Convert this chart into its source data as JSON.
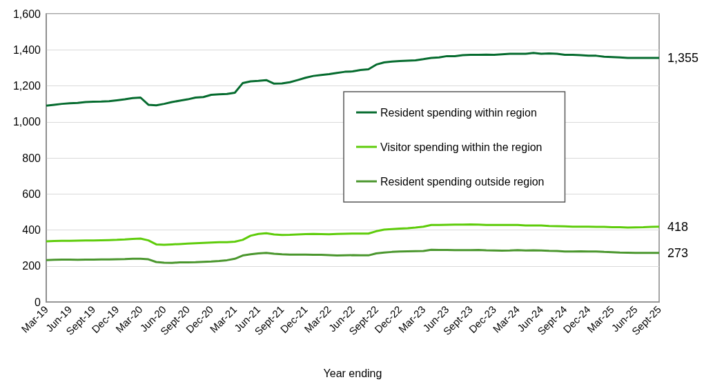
{
  "chart_data": {
    "type": "line",
    "xlabel": "Year ending",
    "categories": [
      "Mar-19",
      null,
      null,
      "Jun-19",
      null,
      null,
      "Sept-19",
      null,
      null,
      "Dec-19",
      null,
      null,
      "Mar-20",
      null,
      null,
      "Jun-20",
      null,
      null,
      "Sept-20",
      null,
      null,
      "Dec-20",
      null,
      null,
      "Mar-21",
      null,
      null,
      "Jun-21",
      null,
      null,
      "Sept-21",
      null,
      null,
      "Dec-21",
      null,
      null,
      "Mar-22",
      null,
      null,
      "Jun-22",
      null,
      null,
      "Sept-22",
      null,
      null,
      "Dec-22",
      null,
      null,
      "Mar-23",
      null,
      null,
      "Jun-23",
      null,
      null,
      "Sept-23",
      null,
      null,
      "Dec-23",
      null,
      null,
      "Mar-24",
      null,
      null,
      "Jun-24",
      null,
      null,
      "Sept-24",
      null,
      null,
      "Dec-24",
      null,
      null,
      "Mar-25",
      null,
      null,
      "Jun-25",
      null,
      null,
      "Sept-25"
    ],
    "series": [
      {
        "name": "Resident spending within region",
        "color": "#056b2e",
        "values": [
          1090,
          1095,
          1100,
          1103,
          1105,
          1110,
          1112,
          1113,
          1115,
          1120,
          1125,
          1132,
          1135,
          1095,
          1092,
          1100,
          1110,
          1118,
          1125,
          1135,
          1138,
          1150,
          1153,
          1155,
          1162,
          1215,
          1225,
          1228,
          1232,
          1212,
          1213,
          1220,
          1232,
          1245,
          1255,
          1260,
          1265,
          1272,
          1278,
          1280,
          1288,
          1292,
          1318,
          1330,
          1335,
          1338,
          1340,
          1342,
          1348,
          1355,
          1358,
          1365,
          1365,
          1370,
          1372,
          1372,
          1373,
          1372,
          1375,
          1378,
          1378,
          1378,
          1383,
          1378,
          1380,
          1378,
          1372,
          1372,
          1370,
          1367,
          1367,
          1362,
          1360,
          1358,
          1355,
          1355,
          1355,
          1355,
          1355
        ],
        "value_labels": [
          null,
          null,
          null,
          null,
          null,
          null,
          null,
          null,
          null,
          null,
          null,
          null,
          null,
          null,
          null,
          null,
          null,
          null,
          null,
          null,
          null,
          null,
          null,
          null,
          null,
          null,
          null,
          null,
          null,
          null,
          null,
          null,
          null,
          null,
          null,
          null,
          null,
          null,
          null,
          null,
          null,
          null,
          null,
          null,
          null,
          null,
          null,
          null,
          null,
          null,
          null,
          null,
          null,
          null,
          null,
          null,
          null,
          null,
          null,
          null,
          null,
          null,
          null,
          null,
          null,
          null,
          null,
          null,
          null,
          null,
          null,
          null,
          null,
          null,
          null,
          null,
          null,
          null,
          "1,355"
        ]
      },
      {
        "name": "Visitor spending within the region",
        "color": "#5ecc0a",
        "values": [
          337,
          339,
          340,
          340,
          341,
          342,
          342,
          343,
          344,
          345,
          347,
          350,
          352,
          342,
          320,
          318,
          320,
          322,
          324,
          326,
          328,
          330,
          332,
          332,
          335,
          345,
          368,
          378,
          382,
          375,
          372,
          373,
          375,
          377,
          378,
          377,
          376,
          378,
          379,
          380,
          380,
          380,
          393,
          402,
          405,
          408,
          410,
          413,
          418,
          428,
          428,
          429,
          430,
          430,
          431,
          430,
          428,
          428,
          428,
          428,
          428,
          425,
          425,
          425,
          422,
          421,
          420,
          418,
          418,
          418,
          417,
          417,
          415,
          415,
          413,
          414,
          415,
          417,
          418
        ],
        "value_labels": [
          null,
          null,
          null,
          null,
          null,
          null,
          null,
          null,
          null,
          null,
          null,
          null,
          null,
          null,
          null,
          null,
          null,
          null,
          null,
          null,
          null,
          null,
          null,
          null,
          null,
          null,
          null,
          null,
          null,
          null,
          null,
          null,
          null,
          null,
          null,
          null,
          null,
          null,
          null,
          null,
          null,
          null,
          null,
          null,
          null,
          null,
          null,
          null,
          null,
          null,
          null,
          null,
          null,
          null,
          null,
          null,
          null,
          null,
          null,
          null,
          null,
          null,
          null,
          null,
          null,
          null,
          null,
          null,
          null,
          null,
          null,
          null,
          null,
          null,
          null,
          null,
          null,
          null,
          "418"
        ]
      },
      {
        "name": "Resident spending outside region",
        "color": "#4a962d",
        "values": [
          233,
          234,
          235,
          235,
          234,
          235,
          235,
          236,
          236,
          237,
          238,
          240,
          240,
          237,
          222,
          218,
          217,
          220,
          220,
          221,
          223,
          225,
          228,
          232,
          240,
          258,
          265,
          270,
          273,
          268,
          265,
          263,
          263,
          263,
          262,
          262,
          260,
          258,
          259,
          260,
          259,
          259,
          270,
          275,
          278,
          280,
          281,
          282,
          283,
          290,
          289,
          289,
          288,
          288,
          288,
          289,
          287,
          286,
          285,
          286,
          288,
          286,
          287,
          286,
          284,
          283,
          280,
          280,
          281,
          280,
          280,
          278,
          277,
          275,
          274,
          273,
          273,
          273,
          273
        ],
        "value_labels": [
          null,
          null,
          null,
          null,
          null,
          null,
          null,
          null,
          null,
          null,
          null,
          null,
          null,
          null,
          null,
          null,
          null,
          null,
          null,
          null,
          null,
          null,
          null,
          null,
          null,
          null,
          null,
          null,
          null,
          null,
          null,
          null,
          null,
          null,
          null,
          null,
          null,
          null,
          null,
          null,
          null,
          null,
          null,
          null,
          null,
          null,
          null,
          null,
          null,
          null,
          null,
          null,
          null,
          null,
          null,
          null,
          null,
          null,
          null,
          null,
          null,
          null,
          null,
          null,
          null,
          null,
          null,
          null,
          null,
          null,
          null,
          null,
          null,
          null,
          null,
          null,
          null,
          null,
          "273"
        ]
      }
    ],
    "ylim": [
      0,
      1600
    ],
    "yticks": [
      0,
      200,
      400,
      600,
      800,
      {
        "value": 1000,
        "label": "1,000"
      },
      {
        "value": 1200,
        "label": "1,200"
      },
      {
        "value": 1400,
        "label": "1,400"
      },
      {
        "value": 1600,
        "label": "1,600"
      }
    ],
    "grid": "y",
    "legend": "right"
  }
}
